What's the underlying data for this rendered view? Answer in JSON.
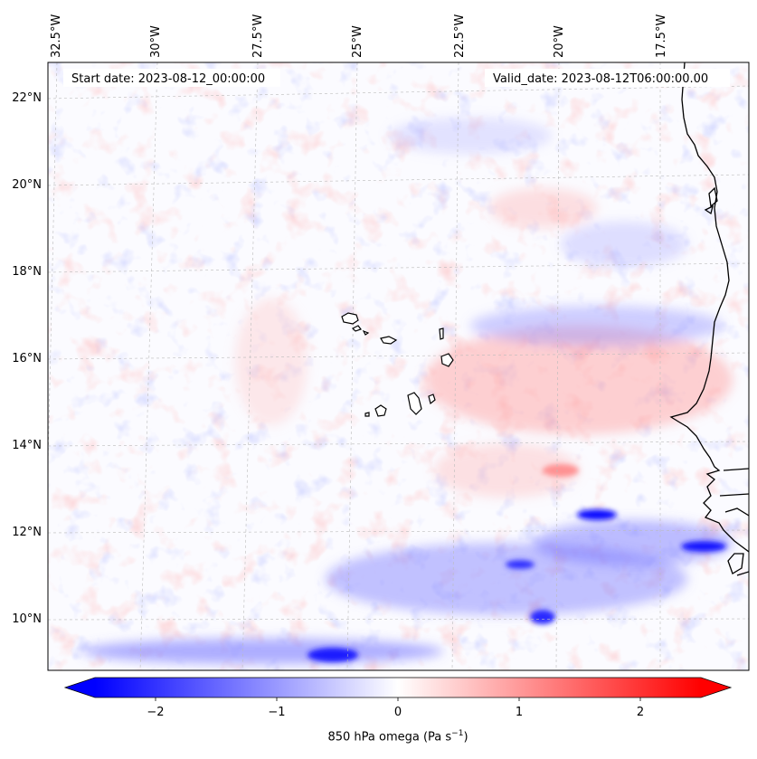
{
  "map": {
    "start_date_text": "Start date: 2023-08-12_00:00:00",
    "valid_date_text": "Valid_date: 2023-08-12T06:00:00.00",
    "lon_labels": [
      "32.5°W",
      "30°W",
      "27.5°W",
      "25°W",
      "22.5°W",
      "20°W",
      "17.5°W"
    ],
    "lat_labels": [
      "22°N",
      "20°N",
      "18°N",
      "16°N",
      "14°N",
      "12°N",
      "10°N"
    ],
    "gridlines": true,
    "region": "Cabo Verde and West African coast",
    "field": "850 hPa omega"
  },
  "colorbar": {
    "label_main": "850 hPa omega (Pa s",
    "label_exp": "−1",
    "label_close": ")",
    "ticks": [
      "−2",
      "−1",
      "0",
      "1",
      "2"
    ],
    "range": [
      -2.7,
      2.7
    ],
    "colormap": "bwr",
    "colors": {
      "negative": "#0000ff",
      "zero": "#ffffff",
      "positive": "#ff0000"
    }
  }
}
